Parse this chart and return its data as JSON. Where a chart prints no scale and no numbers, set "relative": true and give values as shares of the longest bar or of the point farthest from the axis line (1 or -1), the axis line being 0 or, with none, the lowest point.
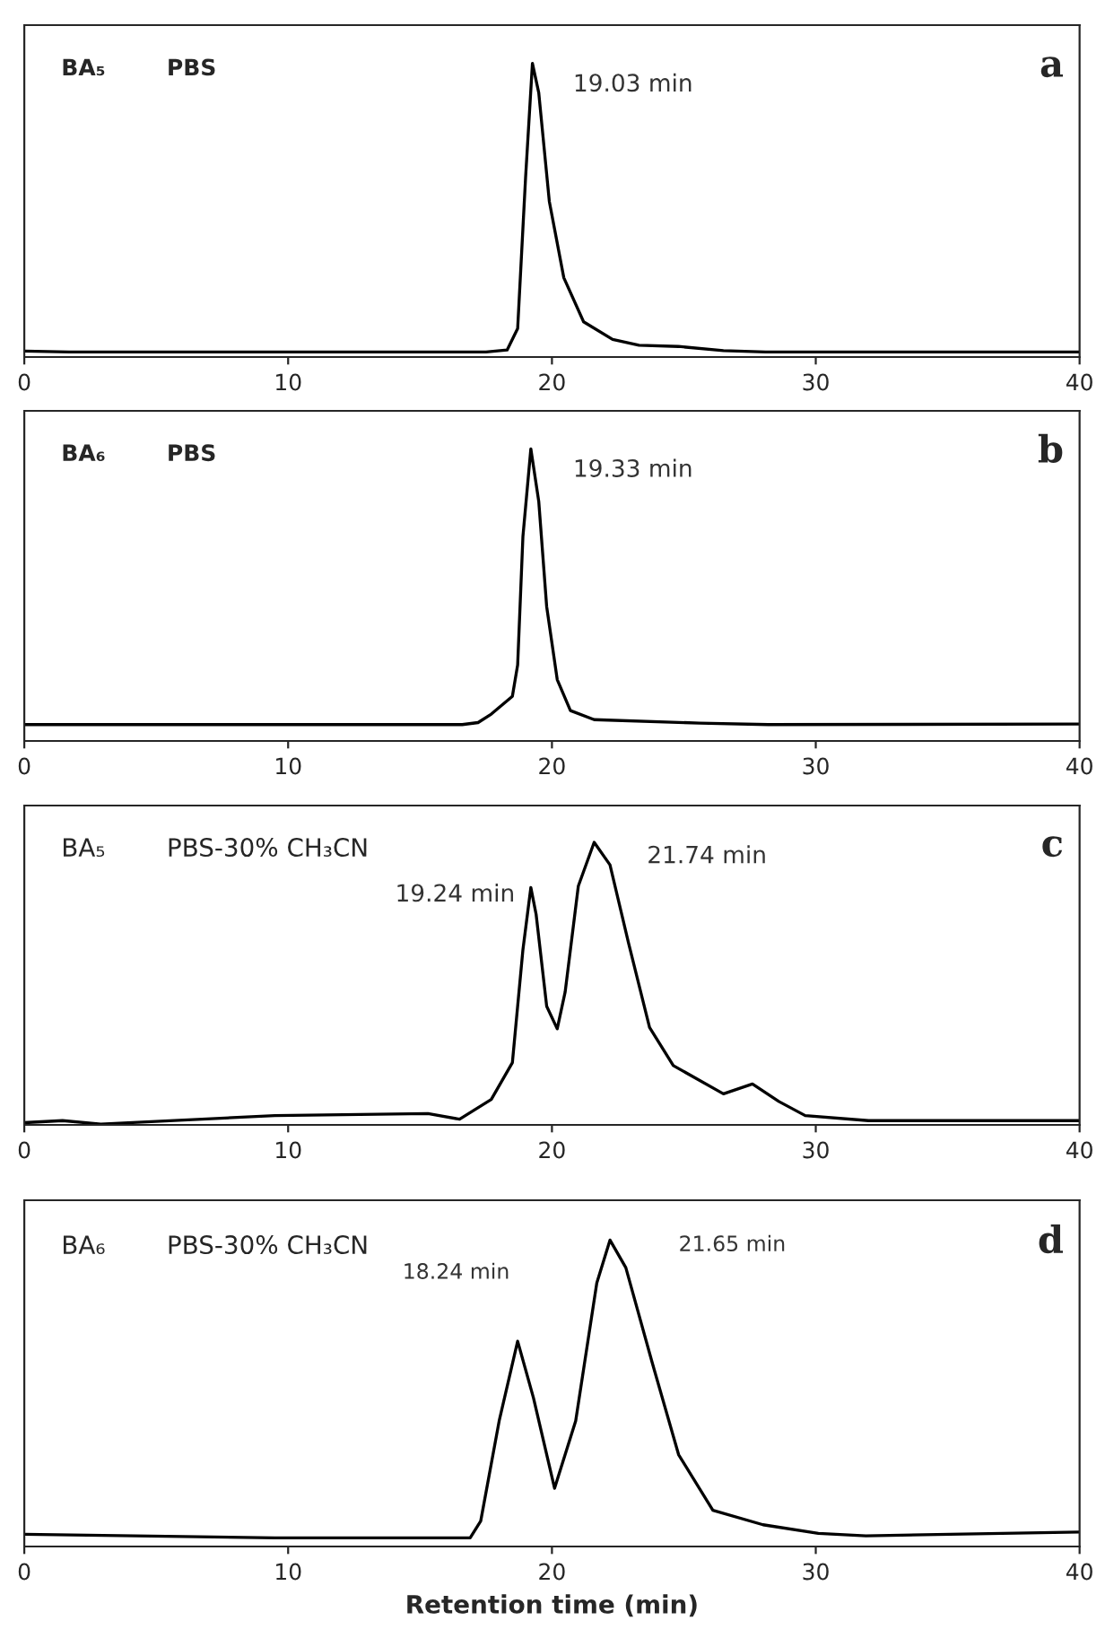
{
  "chart_data": [
    {
      "type": "line",
      "relative": true,
      "xlim": [
        0,
        40
      ],
      "xticks": [
        0,
        10,
        20,
        30,
        40
      ],
      "tick_labels": "x",
      "grid": false,
      "legend": false,
      "series": [
        {
          "color": "#000000",
          "x": [
            0,
            1.7,
            17.5,
            18.3,
            18.7,
            19.0,
            19.26,
            19.5,
            19.9,
            20.45,
            21.2,
            22.3,
            23.3,
            24.8,
            26.5,
            28.1,
            40
          ],
          "values": [
            0.02,
            0.017,
            0.017,
            0.024,
            0.097,
            0.61,
            1.0,
            0.9,
            0.53,
            0.27,
            0.12,
            0.06,
            0.04,
            0.036,
            0.022,
            0.017,
            0.017
          ]
        }
      ],
      "annotations": [
        "BA₅",
        "PBS",
        "a",
        "19.03 min"
      ]
    },
    {
      "type": "line",
      "relative": true,
      "xlim": [
        0,
        40
      ],
      "xticks": [
        0,
        10,
        20,
        30,
        40
      ],
      "tick_labels": "x",
      "grid": false,
      "legend": false,
      "series": [
        {
          "color": "#000000",
          "x": [
            0,
            16.6,
            17.2,
            17.7,
            18.5,
            18.7,
            18.9,
            19.2,
            19.5,
            19.8,
            20.2,
            20.7,
            21.6,
            25.6,
            28.2,
            40
          ],
          "values": [
            0.056,
            0.056,
            0.063,
            0.092,
            0.153,
            0.26,
            0.7,
            1.0,
            0.82,
            0.46,
            0.21,
            0.104,
            0.073,
            0.061,
            0.056,
            0.058
          ]
        }
      ],
      "annotations": [
        "BA₆",
        "PBS",
        "b",
        "19.33 min"
      ]
    },
    {
      "type": "line",
      "relative": true,
      "xlim": [
        0,
        40
      ],
      "xticks": [
        0,
        10,
        20,
        30,
        40
      ],
      "tick_labels": "x",
      "grid": false,
      "legend": false,
      "series": [
        {
          "color": "#000000",
          "x": [
            0,
            1.45,
            2.9,
            9.5,
            15.3,
            16.5,
            17.7,
            18.5,
            18.9,
            19.2,
            19.4,
            19.8,
            20.2,
            20.5,
            21.0,
            21.6,
            22.2,
            22.9,
            23.7,
            24.6,
            26.5,
            27.6,
            28.6,
            29.6,
            32,
            40
          ],
          "values": [
            0.008,
            0.015,
            0.003,
            0.033,
            0.04,
            0.02,
            0.09,
            0.22,
            0.62,
            0.84,
            0.745,
            0.42,
            0.34,
            0.47,
            0.845,
            1.0,
            0.92,
            0.645,
            0.345,
            0.21,
            0.11,
            0.145,
            0.083,
            0.033,
            0.015,
            0.015
          ]
        }
      ],
      "annotations": [
        "BA₅",
        "PBS-30% CH₃CN",
        "c",
        "19.24 min",
        "21.74 min"
      ]
    },
    {
      "type": "line",
      "relative": true,
      "xlim": [
        0,
        40
      ],
      "xticks": [
        0,
        10,
        20,
        30,
        40
      ],
      "tick_labels": "x",
      "grid": false,
      "legend": false,
      "xlabel": "Retention time (min)",
      "series": [
        {
          "color": "#000000",
          "x": [
            0,
            9.5,
            16.9,
            17.3,
            18.0,
            18.7,
            19.3,
            20.1,
            20.9,
            21.7,
            22.2,
            22.8,
            23.8,
            24.8,
            26.1,
            28.0,
            30.1,
            31.9,
            40
          ],
          "values": [
            0.04,
            0.028,
            0.028,
            0.083,
            0.41,
            0.67,
            0.485,
            0.19,
            0.41,
            0.86,
            1.0,
            0.91,
            0.6,
            0.3,
            0.118,
            0.071,
            0.043,
            0.035,
            0.047
          ]
        }
      ],
      "annotations": [
        "BA₆",
        "PBS-30% CH₃CN",
        "d",
        "18.24 min",
        "21.65 min"
      ]
    }
  ]
}
